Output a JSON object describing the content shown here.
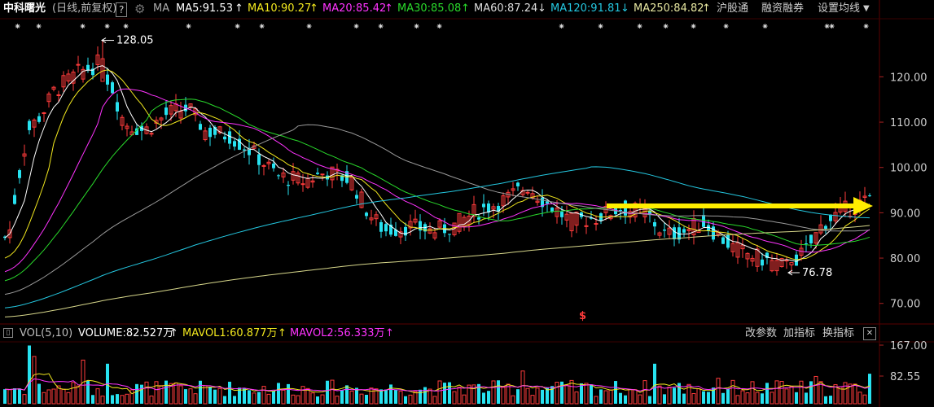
{
  "header": {
    "stock_name": "中科曙光",
    "mode": "(日线,前复权)",
    "help_label": "?",
    "ma_label": "MA",
    "ma5": "MA5:91.53",
    "ma10": "MA10:90.27",
    "ma20": "MA20:85.42",
    "ma30": "MA30:85.08",
    "ma60": "MA60:87.24",
    "ma120": "MA120:91.81",
    "ma250": "MA250:84.82",
    "menu1": "沪股通",
    "menu2": "融资融券",
    "menu3": "设置均线"
  },
  "annotations": {
    "high": "128.05",
    "low": "76.78",
    "marker": "$"
  },
  "price_axis": {
    "ticks": [
      "120.00",
      "110.00",
      "100.00",
      "90.00",
      "80.00",
      "70.00"
    ]
  },
  "volume_bar": {
    "title": "VOL(5,10)",
    "volume": "VOLUME:82.527万",
    "mavol1": "MAVOL1:60.877万",
    "mavol2": "MAVOL2:56.333万",
    "btn1": "改参数",
    "btn2": "加指标",
    "btn3": "换指标",
    "close_label": "✕"
  },
  "volume_axis": {
    "ticks": [
      "167.00",
      "82.55"
    ]
  },
  "colors": {
    "up": "#ff3b3b",
    "down": "#27e2f0",
    "ma5": "#ffffff",
    "ma10": "#f2e81e",
    "ma20": "#ff33ff",
    "ma30": "#29d92b",
    "ma60": "#9a9a9a",
    "ma120": "#24c7e0",
    "ma250": "#d6d68a",
    "arrow": "#ffee00"
  },
  "chart_data": {
    "type": "candlestick",
    "price_ylim": [
      66,
      133
    ],
    "current_volume_wan": 82.527,
    "ma_last": {
      "ma5": 91.53,
      "ma10": 90.27,
      "ma20": 85.42,
      "ma30": 85.08,
      "ma60": 87.24,
      "ma120": 91.81,
      "ma250": 84.82
    },
    "high_low": {
      "high": 128.05,
      "low": 76.78
    }
  }
}
